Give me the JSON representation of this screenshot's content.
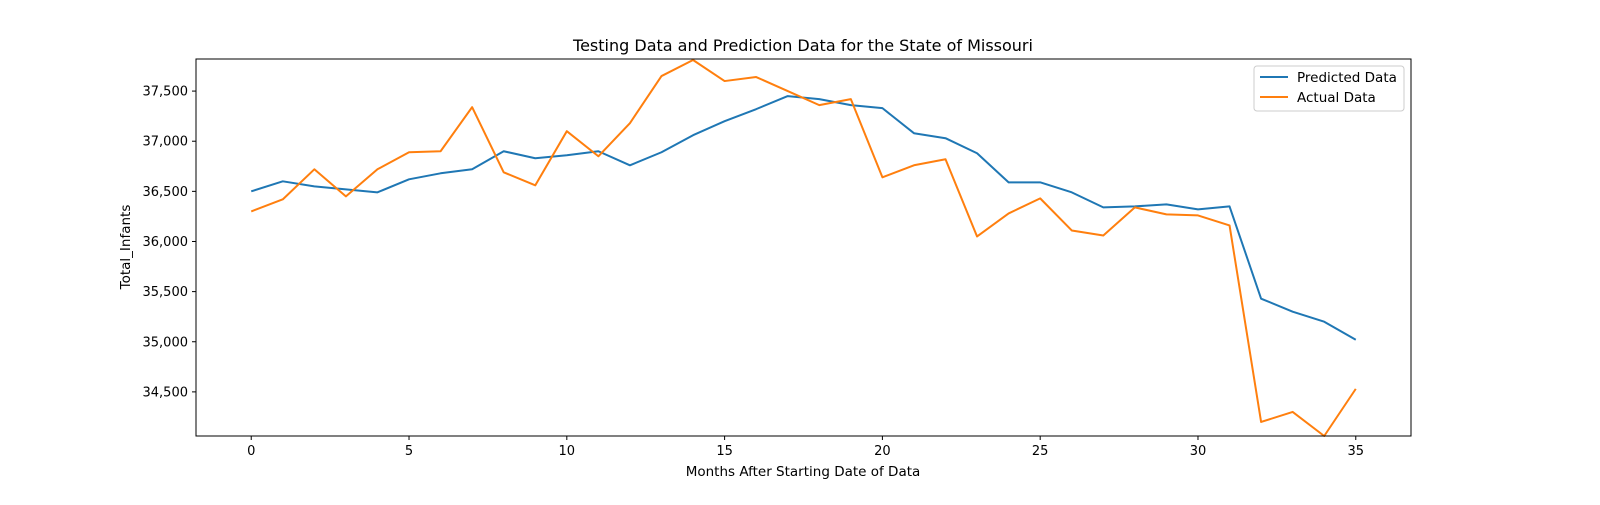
{
  "chart_data": {
    "type": "line",
    "title": "Testing Data and Prediction Data for the State of Missouri",
    "xlabel": "Months After Starting Date of Data",
    "ylabel": "Total_Infants",
    "xlim": [
      -1.75,
      36.75
    ],
    "ylim": [
      34060,
      37820
    ],
    "xticks": [
      0,
      5,
      10,
      15,
      20,
      25,
      30,
      35
    ],
    "yticks": [
      34500,
      35000,
      35500,
      36000,
      36500,
      37000,
      37500
    ],
    "ytick_labels": [
      "34,500",
      "35,000",
      "35,500",
      "36,000",
      "36,500",
      "37,000",
      "37,500"
    ],
    "grid": false,
    "legend_position": "top-right",
    "x": [
      0,
      1,
      2,
      3,
      4,
      5,
      6,
      7,
      8,
      9,
      10,
      11,
      12,
      13,
      14,
      15,
      16,
      17,
      18,
      19,
      20,
      21,
      22,
      23,
      24,
      25,
      26,
      27,
      28,
      29,
      30,
      31,
      32,
      33,
      34,
      35
    ],
    "series": [
      {
        "name": "Predicted Data",
        "color": "#1f77b4",
        "values": [
          36500,
          36600,
          36550,
          36520,
          36490,
          36620,
          36680,
          36720,
          36900,
          36830,
          36860,
          36900,
          36760,
          36890,
          37060,
          37200,
          37320,
          37450,
          37420,
          37360,
          37330,
          37080,
          37030,
          36880,
          36590,
          36590,
          36490,
          36340,
          36350,
          36370,
          36320,
          36350,
          35430,
          35300,
          35200,
          35020
        ]
      },
      {
        "name": "Actual Data",
        "color": "#ff7f0e",
        "values": [
          36300,
          36420,
          36720,
          36450,
          36720,
          36890,
          36900,
          37340,
          36690,
          36560,
          37100,
          36850,
          37180,
          37650,
          37810,
          37600,
          37640,
          37500,
          37360,
          37420,
          36640,
          36760,
          36820,
          36050,
          36280,
          36430,
          36110,
          36060,
          36340,
          36270,
          36260,
          36160,
          34200,
          34300,
          34060,
          34530
        ]
      }
    ]
  }
}
